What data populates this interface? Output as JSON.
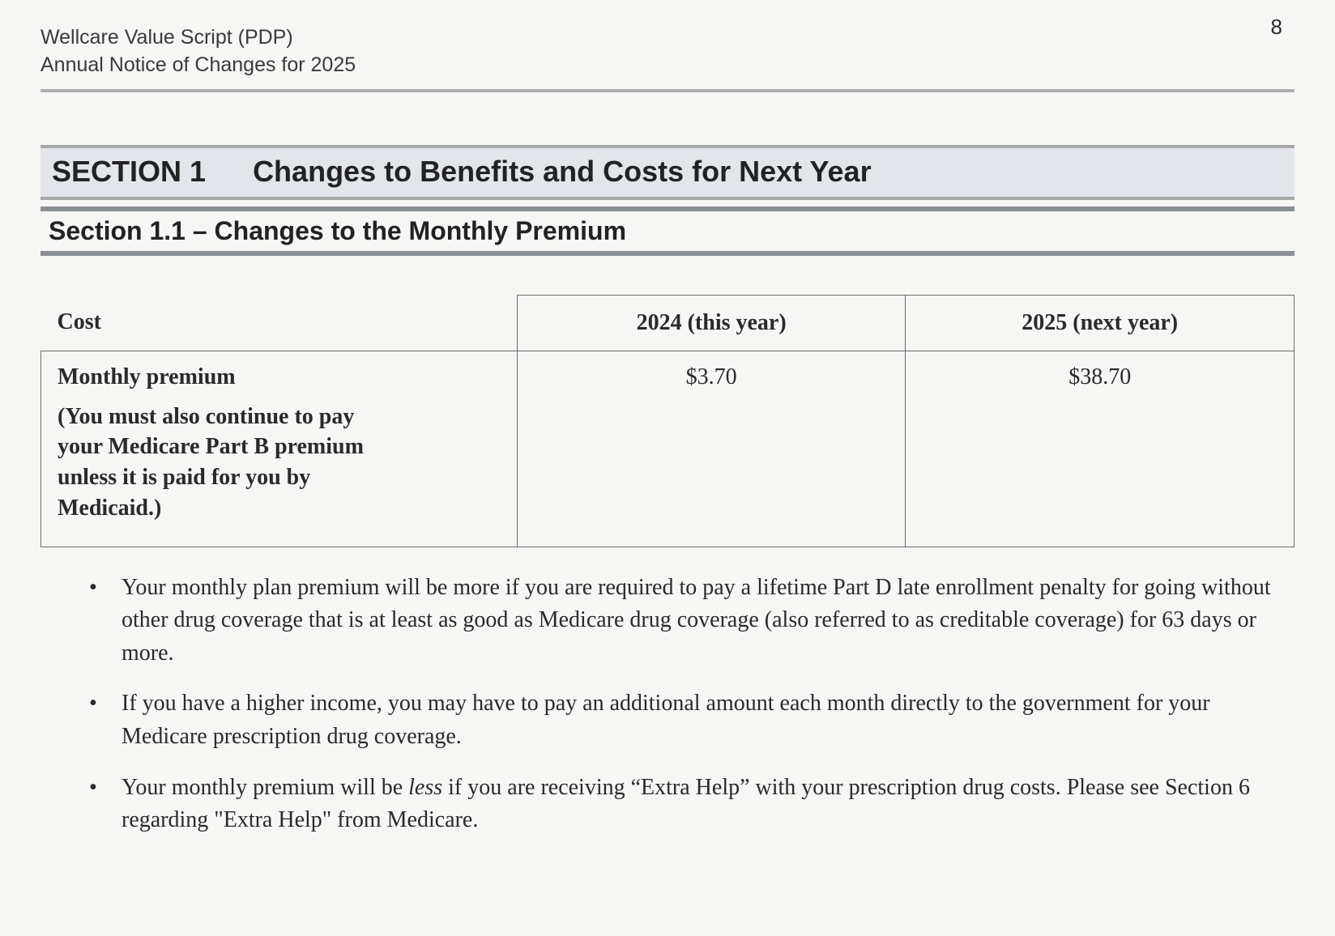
{
  "page_number": "8",
  "header": {
    "line1": "Wellcare Value Script (PDP)",
    "line2": "Annual Notice of Changes for 2025"
  },
  "section": {
    "label": "SECTION 1",
    "title": "Changes to Benefits and Costs for Next Year"
  },
  "subsection": {
    "title": "Section 1.1  –  Changes to the Monthly Premium"
  },
  "table": {
    "columns": {
      "cost": "Cost",
      "year_current": "2024 (this year)",
      "year_next": "2025 (next year)"
    },
    "row": {
      "label": "Monthly premium",
      "note": "(You must also continue to pay your Medicare Part B premium unless it is paid for you by Medicaid.)",
      "val_current": "$3.70",
      "val_next": "$38.70"
    }
  },
  "bullets": {
    "b1": "Your monthly plan premium will be more if you are required to pay a lifetime Part D late enrollment penalty for going without other drug coverage that is at least as good as Medicare drug coverage (also referred to as creditable coverage) for 63 days or more.",
    "b2": "If you have a higher income, you may have to pay an additional amount each month directly to the government for your Medicare prescription drug coverage.",
    "b3_pre": "Your monthly premium will be ",
    "b3_italic": "less",
    "b3_post": " if you are receiving “Extra Help” with your prescription drug costs. Please see Section 6 regarding \"Extra Help\" from Medicare."
  },
  "colors": {
    "background": "#f6f6f4",
    "text": "#2a2a2a",
    "banner_bg": "#e2e6ea",
    "rule_gray": "#8a8f94",
    "border": "#6d6d6d"
  },
  "typography": {
    "body_font": "Times New Roman",
    "heading_font": "Arial",
    "body_fontsize_pt": 21,
    "section_fontsize_pt": 27,
    "subsection_fontsize_pt": 24,
    "header_fontsize_pt": 19
  }
}
